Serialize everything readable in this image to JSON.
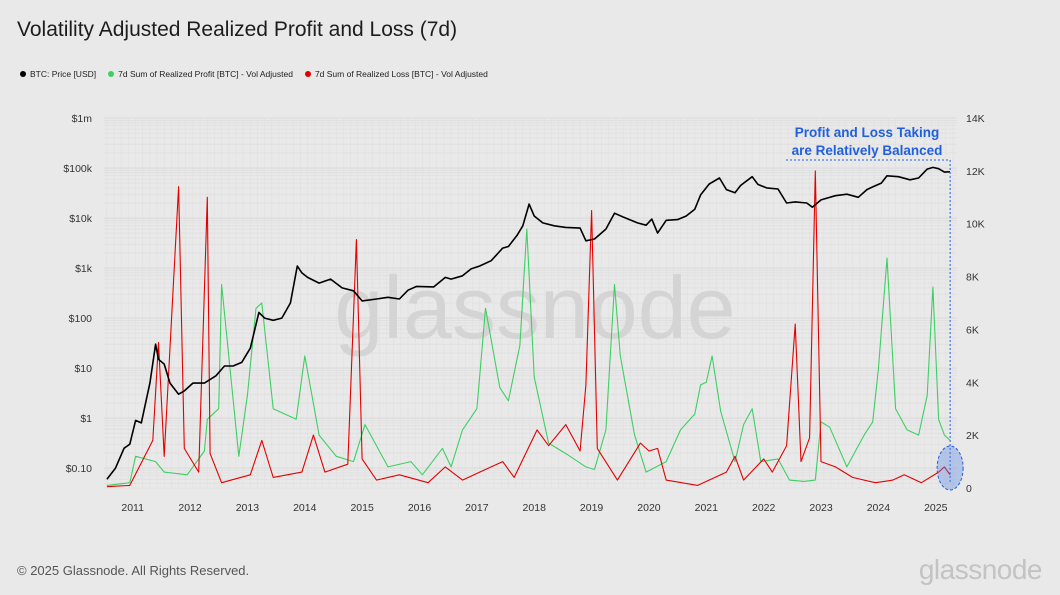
{
  "title": "Volatility Adjusted Realized Profit and Loss (7d)",
  "footer": "© 2025 Glassnode. All Rights Reserved.",
  "brand": "glassnode",
  "watermark": "glassnode",
  "colors": {
    "price": "#000000",
    "profit": "#3ecf63",
    "loss": "#e30000",
    "annotation": "#1f5fe0",
    "background": "#e9e9e9"
  },
  "chart_data": {
    "type": "line",
    "legend": [
      {
        "name": "BTC: Price [USD]",
        "color": "#000000"
      },
      {
        "name": "7d Sum of Realized Profit [BTC] - Vol Adjusted",
        "color": "#3ecf63"
      },
      {
        "name": "7d Sum of Realized Loss [BTC] - Vol Adjusted",
        "color": "#e30000"
      }
    ],
    "legend_position": "top-left",
    "x_ticks": [
      "2011",
      "2012",
      "2013",
      "2014",
      "2015",
      "2016",
      "2017",
      "2018",
      "2019",
      "2020",
      "2021",
      "2022",
      "2023",
      "2024",
      "2025"
    ],
    "x_range": [
      2010.55,
      2025.42
    ],
    "y_left": {
      "scale": "log",
      "ticks": [
        "$0.10",
        "$1",
        "$10",
        "$100",
        "$1k",
        "$10k",
        "$100k",
        "$1m"
      ],
      "range": [
        0.04,
        1000000
      ]
    },
    "y_right": {
      "scale": "linear",
      "ticks": [
        "0",
        "2K",
        "4K",
        "6K",
        "8K",
        "10K",
        "12K",
        "14K"
      ],
      "range": [
        0,
        14000
      ]
    },
    "grid": true,
    "annotation": {
      "lines": [
        "Profit and Loss Taking",
        "are Relatively Balanced"
      ],
      "date": 2025.3
    },
    "series": [
      {
        "name": "BTC: Price [USD]",
        "axis": "left",
        "points": [
          [
            2010.6,
            0.06
          ],
          [
            2010.75,
            0.1
          ],
          [
            2010.9,
            0.25
          ],
          [
            2011.0,
            0.3
          ],
          [
            2011.1,
            0.9
          ],
          [
            2011.2,
            0.8
          ],
          [
            2011.35,
            5
          ],
          [
            2011.45,
            30
          ],
          [
            2011.5,
            15
          ],
          [
            2011.6,
            12
          ],
          [
            2011.7,
            5
          ],
          [
            2011.85,
            3
          ],
          [
            2011.95,
            3.5
          ],
          [
            2012.1,
            5
          ],
          [
            2012.3,
            5
          ],
          [
            2012.5,
            7
          ],
          [
            2012.65,
            11
          ],
          [
            2012.8,
            11
          ],
          [
            2012.95,
            13
          ],
          [
            2013.1,
            25
          ],
          [
            2013.25,
            130
          ],
          [
            2013.35,
            100
          ],
          [
            2013.5,
            90
          ],
          [
            2013.65,
            100
          ],
          [
            2013.8,
            200
          ],
          [
            2013.92,
            1100
          ],
          [
            2014.0,
            800
          ],
          [
            2014.1,
            650
          ],
          [
            2014.3,
            500
          ],
          [
            2014.5,
            600
          ],
          [
            2014.7,
            400
          ],
          [
            2014.9,
            350
          ],
          [
            2015.05,
            220
          ],
          [
            2015.3,
            240
          ],
          [
            2015.5,
            260
          ],
          [
            2015.7,
            240
          ],
          [
            2015.85,
            360
          ],
          [
            2016.0,
            430
          ],
          [
            2016.3,
            420
          ],
          [
            2016.5,
            650
          ],
          [
            2016.6,
            600
          ],
          [
            2016.8,
            700
          ],
          [
            2016.95,
            960
          ],
          [
            2017.1,
            1100
          ],
          [
            2017.3,
            1400
          ],
          [
            2017.5,
            2500
          ],
          [
            2017.6,
            2700
          ],
          [
            2017.75,
            4500
          ],
          [
            2017.85,
            7000
          ],
          [
            2017.96,
            19000
          ],
          [
            2018.05,
            11000
          ],
          [
            2018.2,
            8000
          ],
          [
            2018.4,
            7000
          ],
          [
            2018.6,
            6500
          ],
          [
            2018.85,
            6300
          ],
          [
            2018.95,
            3500
          ],
          [
            2019.1,
            3800
          ],
          [
            2019.3,
            6000
          ],
          [
            2019.45,
            12500
          ],
          [
            2019.6,
            10500
          ],
          [
            2019.85,
            8000
          ],
          [
            2020.0,
            7200
          ],
          [
            2020.1,
            9500
          ],
          [
            2020.2,
            5000
          ],
          [
            2020.35,
            9000
          ],
          [
            2020.55,
            9300
          ],
          [
            2020.7,
            11000
          ],
          [
            2020.85,
            15000
          ],
          [
            2020.95,
            29000
          ],
          [
            2021.1,
            48000
          ],
          [
            2021.28,
            63000
          ],
          [
            2021.4,
            37000
          ],
          [
            2021.55,
            32000
          ],
          [
            2021.65,
            45000
          ],
          [
            2021.85,
            67000
          ],
          [
            2021.95,
            47000
          ],
          [
            2022.1,
            40000
          ],
          [
            2022.3,
            38000
          ],
          [
            2022.45,
            20000
          ],
          [
            2022.6,
            21000
          ],
          [
            2022.8,
            20000
          ],
          [
            2022.9,
            16500
          ],
          [
            2023.05,
            23000
          ],
          [
            2023.3,
            28000
          ],
          [
            2023.5,
            30000
          ],
          [
            2023.7,
            26000
          ],
          [
            2023.85,
            37000
          ],
          [
            2023.95,
            42000
          ],
          [
            2024.1,
            50000
          ],
          [
            2024.2,
            70000
          ],
          [
            2024.4,
            67000
          ],
          [
            2024.6,
            58000
          ],
          [
            2024.75,
            63000
          ],
          [
            2024.9,
            95000
          ],
          [
            2025.0,
            103000
          ],
          [
            2025.1,
            97000
          ],
          [
            2025.2,
            83000
          ],
          [
            2025.3,
            84000
          ]
        ]
      },
      {
        "name": "7d Sum of Realized Profit [BTC] - Vol Adjusted",
        "axis": "right",
        "points": [
          [
            2010.6,
            100
          ],
          [
            2011.0,
            200
          ],
          [
            2011.1,
            1200
          ],
          [
            2011.45,
            1000
          ],
          [
            2011.6,
            600
          ],
          [
            2012.0,
            500
          ],
          [
            2012.3,
            1400
          ],
          [
            2012.35,
            2600
          ],
          [
            2012.55,
            3000
          ],
          [
            2012.6,
            7700
          ],
          [
            2012.9,
            1200
          ],
          [
            2013.05,
            3500
          ],
          [
            2013.2,
            6800
          ],
          [
            2013.3,
            7000
          ],
          [
            2013.5,
            3000
          ],
          [
            2013.9,
            2600
          ],
          [
            2014.05,
            5000
          ],
          [
            2014.3,
            2000
          ],
          [
            2014.6,
            1200
          ],
          [
            2014.9,
            1000
          ],
          [
            2015.1,
            2400
          ],
          [
            2015.5,
            800
          ],
          [
            2015.9,
            1000
          ],
          [
            2016.1,
            500
          ],
          [
            2016.45,
            1500
          ],
          [
            2016.6,
            800
          ],
          [
            2016.8,
            2200
          ],
          [
            2017.05,
            3000
          ],
          [
            2017.2,
            6800
          ],
          [
            2017.45,
            3800
          ],
          [
            2017.6,
            3300
          ],
          [
            2017.8,
            5400
          ],
          [
            2017.92,
            9800
          ],
          [
            2018.05,
            4200
          ],
          [
            2018.3,
            1700
          ],
          [
            2018.6,
            1300
          ],
          [
            2018.95,
            800
          ],
          [
            2019.1,
            700
          ],
          [
            2019.3,
            2200
          ],
          [
            2019.45,
            7700
          ],
          [
            2019.55,
            5000
          ],
          [
            2019.8,
            2000
          ],
          [
            2020.0,
            600
          ],
          [
            2020.35,
            1000
          ],
          [
            2020.6,
            2200
          ],
          [
            2020.85,
            2800
          ],
          [
            2020.95,
            3900
          ],
          [
            2021.05,
            4000
          ],
          [
            2021.15,
            5000
          ],
          [
            2021.3,
            2900
          ],
          [
            2021.55,
            1000
          ],
          [
            2021.7,
            2400
          ],
          [
            2021.85,
            3000
          ],
          [
            2022.0,
            1000
          ],
          [
            2022.3,
            1100
          ],
          [
            2022.5,
            300
          ],
          [
            2022.75,
            250
          ],
          [
            2022.95,
            300
          ],
          [
            2023.05,
            2500
          ],
          [
            2023.2,
            2300
          ],
          [
            2023.5,
            800
          ],
          [
            2023.8,
            2000
          ],
          [
            2023.95,
            2500
          ],
          [
            2024.05,
            4500
          ],
          [
            2024.2,
            8700
          ],
          [
            2024.35,
            3000
          ],
          [
            2024.55,
            2200
          ],
          [
            2024.75,
            2000
          ],
          [
            2024.9,
            3500
          ],
          [
            2025.0,
            7600
          ],
          [
            2025.1,
            2600
          ],
          [
            2025.2,
            2000
          ],
          [
            2025.3,
            1800
          ]
        ]
      },
      {
        "name": "7d Sum of Realized Loss [BTC] - Vol Adjusted",
        "axis": "right",
        "points": [
          [
            2010.6,
            50
          ],
          [
            2011.0,
            100
          ],
          [
            2011.4,
            1800
          ],
          [
            2011.5,
            5500
          ],
          [
            2011.6,
            1200
          ],
          [
            2011.85,
            11400
          ],
          [
            2011.95,
            1500
          ],
          [
            2012.2,
            600
          ],
          [
            2012.35,
            11000
          ],
          [
            2012.4,
            1300
          ],
          [
            2012.6,
            200
          ],
          [
            2013.1,
            500
          ],
          [
            2013.3,
            1800
          ],
          [
            2013.5,
            400
          ],
          [
            2014.0,
            600
          ],
          [
            2014.2,
            2000
          ],
          [
            2014.4,
            600
          ],
          [
            2014.8,
            900
          ],
          [
            2014.95,
            9400
          ],
          [
            2015.05,
            1100
          ],
          [
            2015.3,
            300
          ],
          [
            2015.7,
            500
          ],
          [
            2016.2,
            200
          ],
          [
            2016.5,
            800
          ],
          [
            2016.8,
            300
          ],
          [
            2017.1,
            600
          ],
          [
            2017.5,
            1000
          ],
          [
            2017.7,
            400
          ],
          [
            2018.1,
            2200
          ],
          [
            2018.3,
            1600
          ],
          [
            2018.6,
            2400
          ],
          [
            2018.85,
            1400
          ],
          [
            2018.95,
            3900
          ],
          [
            2019.05,
            10500
          ],
          [
            2019.15,
            1500
          ],
          [
            2019.5,
            300
          ],
          [
            2019.9,
            1700
          ],
          [
            2020.05,
            1400
          ],
          [
            2020.2,
            1500
          ],
          [
            2020.35,
            300
          ],
          [
            2020.9,
            100
          ],
          [
            2021.4,
            600
          ],
          [
            2021.55,
            1200
          ],
          [
            2021.7,
            300
          ],
          [
            2022.05,
            1100
          ],
          [
            2022.2,
            600
          ],
          [
            2022.45,
            1600
          ],
          [
            2022.6,
            6200
          ],
          [
            2022.7,
            1000
          ],
          [
            2022.85,
            1900
          ],
          [
            2022.95,
            12000
          ],
          [
            2023.05,
            1000
          ],
          [
            2023.3,
            800
          ],
          [
            2023.6,
            400
          ],
          [
            2023.8,
            300
          ],
          [
            2024.0,
            200
          ],
          [
            2024.3,
            300
          ],
          [
            2024.5,
            500
          ],
          [
            2024.8,
            200
          ],
          [
            2025.1,
            600
          ],
          [
            2025.2,
            800
          ],
          [
            2025.3,
            500
          ]
        ]
      }
    ]
  }
}
